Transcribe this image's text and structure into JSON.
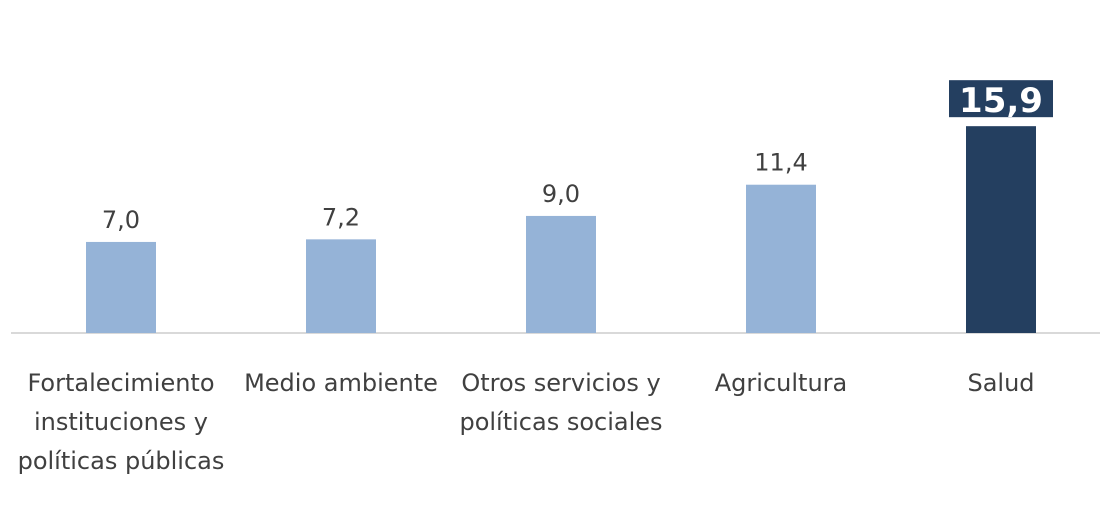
{
  "chart_data": {
    "type": "bar",
    "categories": [
      "Fortalecimiento instituciones y políticas públicas",
      "Medio ambiente",
      "Otros servicios y políticas sociales",
      "Agricultura",
      "Salud"
    ],
    "values": [
      7.0,
      7.2,
      9.0,
      11.4,
      15.9
    ],
    "value_labels": [
      "7,0",
      "7,2",
      "9,0",
      "11,4",
      "15,9"
    ],
    "colors": [
      "#95b3d7",
      "#95b3d7",
      "#95b3d7",
      "#95b3d7",
      "#243f60"
    ],
    "highlight": 4,
    "ylim": [
      0,
      25.6
    ]
  }
}
